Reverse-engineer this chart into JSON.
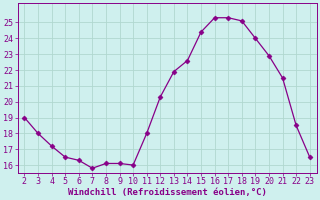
{
  "x": [
    2,
    3,
    4,
    5,
    6,
    7,
    8,
    9,
    10,
    11,
    12,
    13,
    14,
    15,
    16,
    17,
    18,
    19,
    20,
    21,
    22,
    23
  ],
  "y": [
    19,
    18,
    17.2,
    16.5,
    16.3,
    15.8,
    16.1,
    16.1,
    16.0,
    18.0,
    20.3,
    21.9,
    22.6,
    24.4,
    25.3,
    25.3,
    25.1,
    24.0,
    22.9,
    21.5,
    18.5,
    16.5
  ],
  "line_color": "#880088",
  "marker": "D",
  "marker_size": 2.5,
  "bg_color": "#cff0ee",
  "grid_color": "#b0d8d0",
  "xlabel": "Windchill (Refroidissement éolien,°C)",
  "xlabel_color": "#880088",
  "ylim": [
    15.5,
    26.2
  ],
  "xlim": [
    1.5,
    23.5
  ],
  "yticks": [
    16,
    17,
    18,
    19,
    20,
    21,
    22,
    23,
    24,
    25
  ],
  "xticks": [
    2,
    3,
    4,
    5,
    6,
    7,
    8,
    9,
    10,
    11,
    12,
    13,
    14,
    15,
    16,
    17,
    18,
    19,
    20,
    21,
    22,
    23
  ],
  "tick_fontsize": 6,
  "xlabel_fontsize": 6.5
}
